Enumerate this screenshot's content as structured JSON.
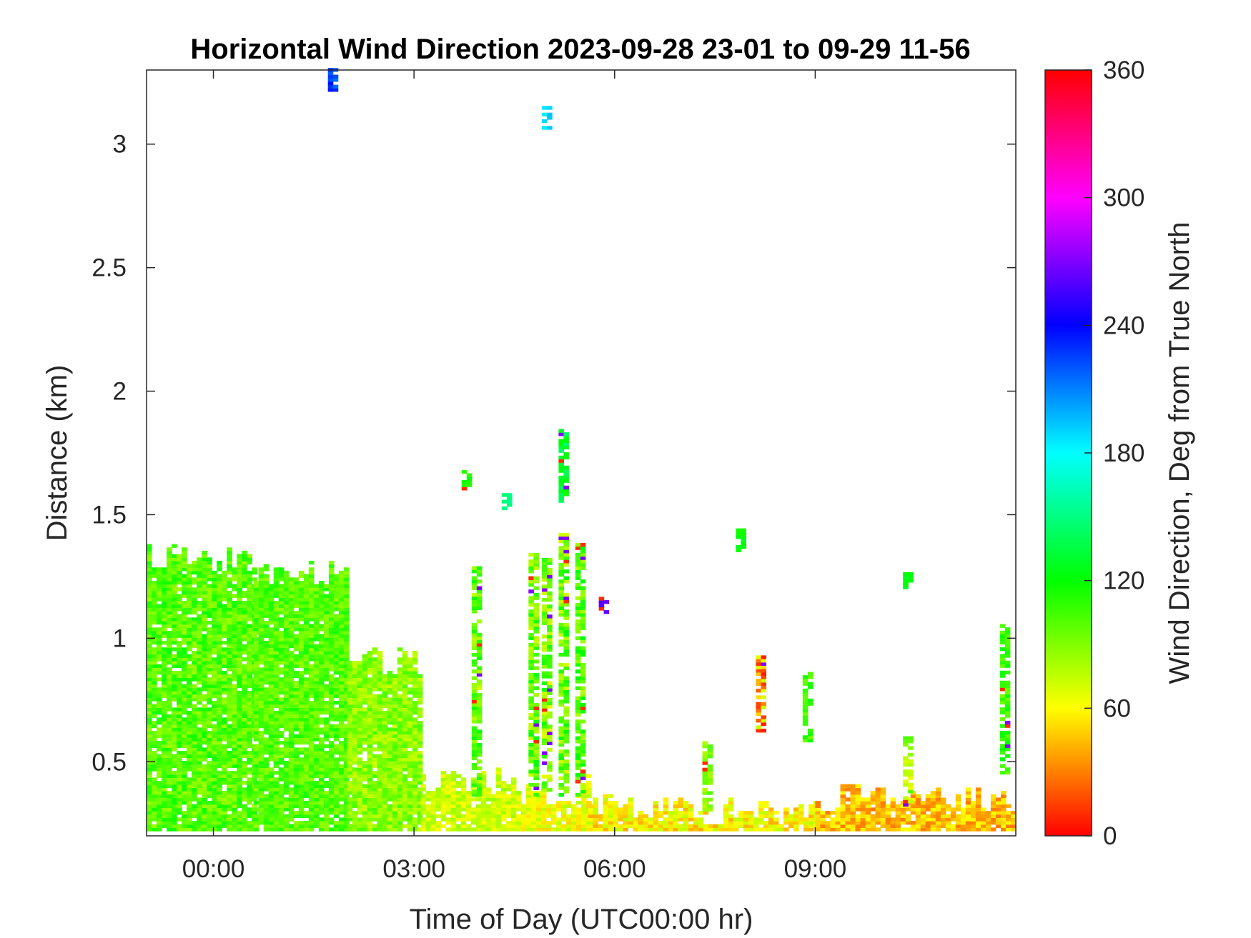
{
  "chart_data": {
    "type": "heatmap",
    "title": "Horizontal Wind Direction 2023-09-28 23-01 to 09-29 11-56",
    "xlabel": "Time of Day (UTC00:00 hr)",
    "ylabel": "Distance (km)",
    "colorbar_label": "Wind Direction, Deg from True North",
    "x_units": "hours relative to 2023-09-29 00:00 UTC",
    "xlim": [
      -1.0,
      12.0
    ],
    "ylim": [
      0.2,
      3.3
    ],
    "x_ticks": [
      {
        "value": 0,
        "label": "00:00"
      },
      {
        "value": 3,
        "label": "03:00"
      },
      {
        "value": 6,
        "label": "06:00"
      },
      {
        "value": 9,
        "label": "09:00"
      }
    ],
    "y_ticks": [
      {
        "value": 0.5,
        "label": "0.5"
      },
      {
        "value": 1.0,
        "label": "1"
      },
      {
        "value": 1.5,
        "label": "1.5"
      },
      {
        "value": 2.0,
        "label": "2"
      },
      {
        "value": 2.5,
        "label": "2.5"
      },
      {
        "value": 3.0,
        "label": "3"
      }
    ],
    "colorbar": {
      "colormap": "hsv",
      "range": [
        0,
        360
      ],
      "ticks": [
        {
          "value": 0,
          "label": "0"
        },
        {
          "value": 60,
          "label": "60"
        },
        {
          "value": 120,
          "label": "120"
        },
        {
          "value": 180,
          "label": "180"
        },
        {
          "value": 240,
          "label": "240"
        },
        {
          "value": 300,
          "label": "300"
        },
        {
          "value": 360,
          "label": "360"
        }
      ]
    },
    "regions": [
      {
        "t0": -1.0,
        "t1": 0.6,
        "z0": 0.22,
        "z1": 1.32,
        "dir_mean": 100,
        "dir_spread": 28
      },
      {
        "t0": 0.6,
        "t1": 2.0,
        "z0": 0.22,
        "z1": 1.26,
        "dir_mean": 100,
        "dir_spread": 24
      },
      {
        "t0": 2.0,
        "t1": 3.1,
        "z0": 0.22,
        "z1": 0.9,
        "dir_mean": 88,
        "dir_spread": 26
      },
      {
        "t0": 3.1,
        "t1": 4.6,
        "z0": 0.22,
        "z1": 0.42,
        "dir_mean": 72,
        "dir_spread": 22
      },
      {
        "t0": 4.6,
        "t1": 5.6,
        "z0": 0.22,
        "z1": 0.38,
        "dir_mean": 64,
        "dir_spread": 24
      },
      {
        "t0": 5.6,
        "t1": 9.0,
        "z0": 0.22,
        "z1": 0.3,
        "dir_mean": 58,
        "dir_spread": 30
      },
      {
        "t0": 9.0,
        "t1": 12.0,
        "z0": 0.22,
        "z1": 0.35,
        "dir_mean": 45,
        "dir_spread": 28
      }
    ],
    "columns": [
      {
        "t": 4.75,
        "z0": 0.36,
        "z1": 1.34,
        "dir_mean": 95,
        "dir_spread": 40
      },
      {
        "t": 4.95,
        "z0": 0.38,
        "z1": 1.32,
        "dir_mean": 90,
        "dir_spread": 40
      },
      {
        "t": 5.2,
        "z0": 0.36,
        "z1": 1.42,
        "dir_mean": 95,
        "dir_spread": 45
      },
      {
        "t": 5.45,
        "z0": 0.36,
        "z1": 1.38,
        "dir_mean": 100,
        "dir_spread": 40
      },
      {
        "t": 3.9,
        "z0": 0.36,
        "z1": 1.28,
        "dir_mean": 95,
        "dir_spread": 40
      },
      {
        "t": 5.2,
        "z0": 1.55,
        "z1": 1.86,
        "dir_mean": 130,
        "dir_spread": 25
      },
      {
        "t": 1.75,
        "z0": 3.2,
        "z1": 3.3,
        "dir_mean": 225,
        "dir_spread": 20
      },
      {
        "t": 4.95,
        "z0": 3.06,
        "z1": 3.15,
        "dir_mean": 190,
        "dir_spread": 15
      },
      {
        "t": 7.85,
        "z0": 1.35,
        "z1": 1.44,
        "dir_mean": 120,
        "dir_spread": 15
      },
      {
        "t": 8.15,
        "z0": 0.62,
        "z1": 0.92,
        "dir_mean": 40,
        "dir_spread": 60
      },
      {
        "t": 7.35,
        "z0": 0.3,
        "z1": 0.58,
        "dir_mean": 90,
        "dir_spread": 20
      },
      {
        "t": 10.35,
        "z0": 0.32,
        "z1": 0.6,
        "dir_mean": 80,
        "dir_spread": 40
      },
      {
        "t": 11.8,
        "z0": 0.45,
        "z1": 1.05,
        "dir_mean": 105,
        "dir_spread": 25
      },
      {
        "t": 8.85,
        "z0": 0.58,
        "z1": 0.85,
        "dir_mean": 105,
        "dir_spread": 20
      },
      {
        "t": 3.75,
        "z0": 1.6,
        "z1": 1.68,
        "dir_mean": 115,
        "dir_spread": 10
      },
      {
        "t": 4.35,
        "z0": 1.52,
        "z1": 1.58,
        "dir_mean": 150,
        "dir_spread": 10
      },
      {
        "t": 5.8,
        "z0": 1.1,
        "z1": 1.16,
        "dir_mean": 262,
        "dir_spread": 5
      },
      {
        "t": 10.35,
        "z0": 1.2,
        "z1": 1.26,
        "dir_mean": 125,
        "dir_spread": 10
      }
    ]
  }
}
